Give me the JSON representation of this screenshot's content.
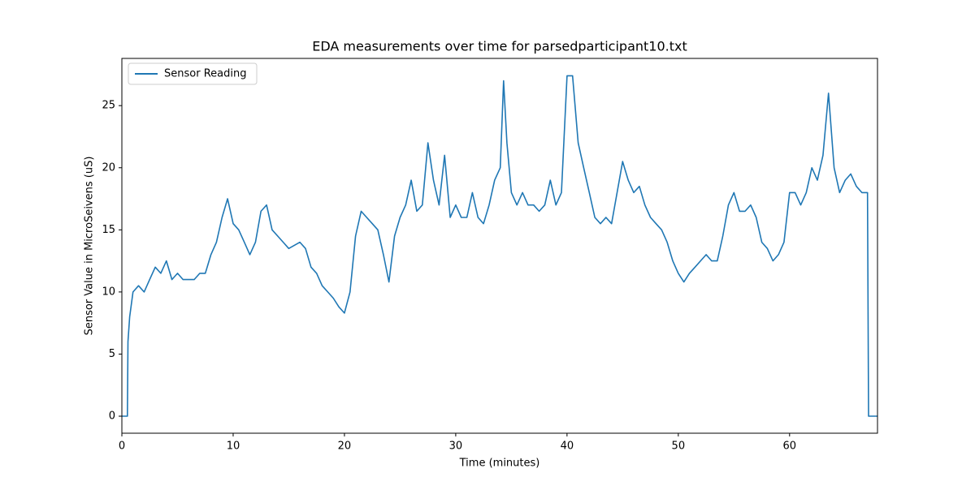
{
  "chart_data": {
    "type": "line",
    "title": "EDA measurements over time for parsedparticipant10.txt",
    "x_label": "Time (minutes)",
    "y_label": "Sensor Value in MicroSeivens (uS)",
    "x": [
      0,
      0.5,
      0.55,
      0.7,
      1,
      1.5,
      2,
      2.5,
      3,
      3.5,
      4,
      4.5,
      5,
      5.5,
      6,
      6.5,
      7,
      7.5,
      8,
      8.5,
      9,
      9.5,
      10,
      10.5,
      11,
      11.5,
      12,
      12.5,
      13,
      13.5,
      14,
      14.5,
      15,
      16,
      16.5,
      17,
      17.5,
      18,
      18.5,
      19,
      19.5,
      20,
      20.5,
      21,
      21.5,
      22,
      22.5,
      23,
      23.5,
      24,
      24.5,
      25,
      25.5,
      26,
      26.5,
      27,
      27.5,
      28,
      28.5,
      29,
      29.5,
      30,
      30.5,
      31,
      31.5,
      32,
      32.5,
      33,
      33.5,
      34,
      34.3,
      34.6,
      35,
      35.5,
      36,
      36.5,
      37,
      37.5,
      38,
      38.5,
      39,
      39.5,
      40,
      40.5,
      41,
      41.5,
      42,
      42.5,
      43,
      43.5,
      44,
      44.5,
      45,
      45.5,
      46,
      46.5,
      47,
      47.5,
      48,
      48.5,
      49,
      49.5,
      50,
      50.5,
      51,
      51.5,
      52,
      52.5,
      53,
      53.5,
      54,
      54.5,
      55,
      55.5,
      56,
      56.5,
      57,
      57.5,
      58,
      58.5,
      59,
      59.5,
      60,
      60.5,
      61,
      61.5,
      62,
      62.5,
      63,
      63.5,
      64,
      64.5,
      65,
      65.5,
      66,
      66.5,
      67,
      67.1,
      67.9
    ],
    "series": [
      {
        "name": "Sensor Reading",
        "color": "#1f77b4",
        "values": [
          0,
          0,
          6,
          8,
          10,
          10.5,
          10,
          11,
          12,
          11.5,
          12.5,
          11,
          11.5,
          11,
          11,
          11,
          11.5,
          11.5,
          13,
          14,
          16,
          17.5,
          15.5,
          15,
          14,
          13,
          14,
          16.5,
          17,
          15,
          14.5,
          14,
          13.5,
          14,
          13.5,
          12,
          11.5,
          10.5,
          10,
          9.5,
          8.8,
          8.3,
          10,
          14.5,
          16.5,
          16,
          15.5,
          15,
          13,
          10.8,
          14.5,
          16,
          17,
          19,
          16.5,
          17,
          22,
          19,
          17,
          21,
          16,
          17,
          16,
          16,
          18,
          16,
          15.5,
          17,
          19,
          20,
          27,
          22,
          18,
          17,
          18,
          17,
          17,
          16.5,
          17,
          19,
          17,
          18,
          27.4,
          27.4,
          22,
          20,
          18,
          16,
          15.5,
          16,
          15.5,
          18,
          20.5,
          19,
          18,
          18.5,
          17,
          16,
          15.5,
          15,
          14,
          12.5,
          11.5,
          10.8,
          11.5,
          12,
          12.5,
          13,
          12.5,
          12.5,
          14.5,
          17,
          18,
          16.5,
          16.5,
          17,
          16,
          14,
          13.5,
          12.5,
          13,
          14,
          18,
          18,
          17,
          18,
          20,
          19,
          21,
          26,
          20,
          18,
          19,
          19.5,
          18.5,
          18,
          18,
          0,
          0
        ]
      }
    ],
    "xlim": [
      0,
      67.9
    ],
    "ylim": [
      -1.37,
      28.8
    ],
    "xticks": [
      0,
      10,
      20,
      30,
      40,
      50,
      60
    ],
    "yticks": [
      0,
      5,
      10,
      15,
      20,
      25
    ],
    "legend": "upper left"
  }
}
